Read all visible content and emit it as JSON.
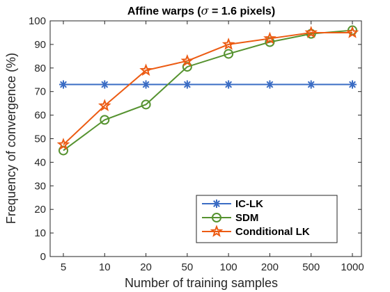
{
  "chart_data": {
    "type": "line",
    "title_prefix": "Affine warps (",
    "title_symbol": "σ",
    "title_suffix": " = 1.6 pixels)",
    "xlabel": "Number of training samples",
    "ylabel": "Frequency of convergence (%)",
    "x_scale": "categorical",
    "categories": [
      "5",
      "10",
      "20",
      "50",
      "100",
      "200",
      "500",
      "1000"
    ],
    "ylim": [
      0,
      100
    ],
    "yticks": [
      0,
      10,
      20,
      30,
      40,
      50,
      60,
      70,
      80,
      90,
      100
    ],
    "grid": false,
    "legend_position": "bottom-right",
    "series": [
      {
        "name": "IC-LK",
        "color": "#3a6cc4",
        "marker": "asterisk",
        "values": [
          73,
          73,
          73,
          73,
          73,
          73,
          73,
          73
        ]
      },
      {
        "name": "SDM",
        "color": "#55922f",
        "marker": "circle",
        "values": [
          45,
          58,
          64.5,
          80.5,
          86,
          91,
          94.5,
          96
        ]
      },
      {
        "name": "Conditional LK",
        "color": "#ec5b13",
        "marker": "star",
        "values": [
          47.5,
          64,
          79,
          83,
          90,
          92.5,
          95,
          95
        ]
      }
    ]
  }
}
